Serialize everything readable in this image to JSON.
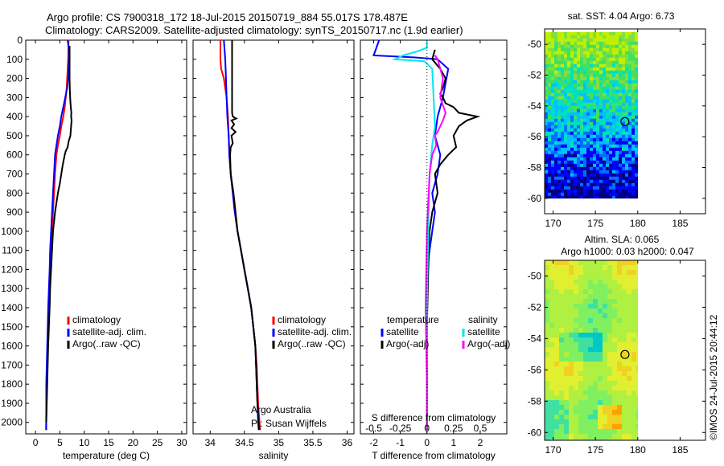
{
  "header": {
    "line1": "Argo profile: CS 7900318_172 18-Jul-2015 20150719_884 55.017S 178.487E",
    "line2": "Climatology: CARS2009. Satellite-adjusted climatology: synTS_20150717.nc (1.9d earlier)"
  },
  "stamp": "©IMOS 24-Jul-2015 20:44:12",
  "colors": {
    "climatology": "#ff0000",
    "satellite": "#0000ff",
    "argo": "#000000",
    "salinity_satellite": "#00e5ee",
    "salinity_argo": "#ff00ff"
  },
  "chart_data": [
    {
      "id": "temperature",
      "type": "line",
      "xlabel": "temperature (deg C)",
      "xlim": [
        -2,
        31
      ],
      "xticks": [
        "0",
        "5",
        "10",
        "15",
        "20",
        "25",
        "30"
      ],
      "ylim": [
        0,
        2060
      ],
      "yticks": [
        "0",
        "100",
        "200",
        "300",
        "400",
        "500",
        "600",
        "700",
        "800",
        "900",
        "1000",
        "1100",
        "1200",
        "1300",
        "1400",
        "1500",
        "1600",
        "1700",
        "1800",
        "1900",
        "2000"
      ],
      "legend": [
        "climatology",
        "satellite-adj. clim.",
        "Argo(..raw -QC)"
      ],
      "series": [
        {
          "name": "climatology",
          "color": "#ff0000",
          "x": [
            6.8,
            6.7,
            6.6,
            6.5,
            6.4,
            6.2,
            6.0,
            5.7,
            5.3,
            5.0,
            4.6,
            4.3,
            4.0,
            3.8,
            3.6,
            3.4,
            3.2,
            3.0,
            2.85,
            2.7,
            2.6,
            2.5,
            2.4,
            2.3,
            2.15
          ],
          "y": [
            0,
            100,
            150,
            200,
            250,
            300,
            350,
            400,
            450,
            500,
            550,
            600,
            700,
            800,
            900,
            1000,
            1100,
            1200,
            1300,
            1400,
            1500,
            1600,
            1700,
            1800,
            2040
          ]
        },
        {
          "name": "satellite-adj. clim.",
          "color": "#0000ff",
          "x": [
            6.6,
            6.8,
            6.9,
            6.8,
            6.7,
            6.5,
            6.1,
            5.7,
            5.3,
            5.0,
            4.6,
            4.3,
            4.0,
            3.8,
            3.6,
            3.4,
            3.2,
            3.0,
            2.9,
            2.75,
            2.6,
            2.5,
            2.4,
            2.3,
            2.2,
            2.2
          ],
          "y": [
            0,
            40,
            80,
            150,
            200,
            250,
            300,
            350,
            400,
            450,
            500,
            550,
            600,
            700,
            800,
            900,
            1000,
            1100,
            1200,
            1300,
            1400,
            1500,
            1600,
            1700,
            1800,
            2040
          ]
        },
        {
          "name": "Argo(..raw -QC)",
          "color": "#000000",
          "x": [
            7.0,
            7.0,
            7.0,
            7.05,
            7.1,
            7.2,
            7.35,
            7.3,
            7.4,
            7.3,
            7.15,
            6.8,
            6.6,
            6.2,
            6.0,
            5.6,
            5.3,
            5.0,
            4.6,
            4.3,
            4.0,
            3.8,
            3.6,
            3.4,
            3.2,
            3.0,
            2.9,
            2.75,
            2.6,
            2.5,
            2.4,
            2.3,
            2.2
          ],
          "y": [
            30,
            100,
            200,
            260,
            300,
            340,
            380,
            400,
            420,
            450,
            500,
            530,
            560,
            580,
            600,
            650,
            700,
            750,
            800,
            850,
            900,
            950,
            1000,
            1100,
            1200,
            1300,
            1400,
            1500,
            1600,
            1700,
            1800,
            1900,
            2000
          ]
        }
      ]
    },
    {
      "id": "salinity",
      "type": "line",
      "xlabel": "salinity",
      "xlim": [
        33.75,
        36.1
      ],
      "xticks": [
        "34",
        "34.5",
        "35",
        "35.5",
        "36"
      ],
      "ylim": [
        0,
        2060
      ],
      "legend": [
        "climatology",
        "satellite-adj. clim.",
        "Argo(..raw -QC)"
      ],
      "annotation": [
        "Argo Australia",
        "PI: Susan Wijffels"
      ],
      "series": [
        {
          "name": "climatology",
          "color": "#ff0000",
          "x": [
            34.15,
            34.15,
            34.16,
            34.2,
            34.24,
            34.26,
            34.27,
            34.28,
            34.3,
            34.33,
            34.36,
            34.4,
            34.45,
            34.5,
            34.55,
            34.6,
            34.63,
            34.66,
            34.68,
            34.69,
            34.7,
            34.71,
            34.72,
            34.73
          ],
          "y": [
            0,
            100,
            150,
            200,
            300,
            400,
            500,
            600,
            700,
            800,
            900,
            1000,
            1100,
            1200,
            1300,
            1400,
            1500,
            1600,
            1700,
            1800,
            1900,
            1950,
            2000,
            2040
          ]
        },
        {
          "name": "satellite-adj. clim.",
          "color": "#0000ff",
          "x": [
            34.2,
            34.22,
            34.23,
            34.24,
            34.25,
            34.27,
            34.28,
            34.3,
            34.33,
            34.36,
            34.4,
            34.45,
            34.5,
            34.55,
            34.6,
            34.63,
            34.66,
            34.67,
            34.68,
            34.69,
            34.7,
            34.71,
            34.72
          ],
          "y": [
            0,
            100,
            200,
            300,
            400,
            500,
            600,
            700,
            800,
            900,
            1000,
            1100,
            1200,
            1300,
            1400,
            1500,
            1600,
            1700,
            1800,
            1900,
            1950,
            2000,
            2040
          ]
        },
        {
          "name": "Argo(..raw -QC)",
          "color": "#000000",
          "x": [
            34.32,
            34.32,
            34.32,
            34.32,
            34.32,
            34.33,
            34.38,
            34.31,
            34.35,
            34.31,
            34.37,
            34.31,
            34.33,
            34.3,
            34.29,
            34.3,
            34.34,
            34.37,
            34.4,
            34.45,
            34.5,
            34.55,
            34.6,
            34.63,
            34.66,
            34.67,
            34.68,
            34.69,
            34.7,
            34.71
          ],
          "y": [
            0,
            100,
            200,
            300,
            380,
            400,
            410,
            420,
            440,
            460,
            480,
            500,
            540,
            560,
            600,
            700,
            800,
            900,
            1000,
            1100,
            1200,
            1300,
            1400,
            1500,
            1600,
            1700,
            1800,
            1900,
            2000,
            2040
          ]
        }
      ]
    },
    {
      "id": "differences",
      "type": "line",
      "xlabel": "T difference from climatology",
      "xlabel_top": "S difference from climatology",
      "xlim": [
        -2.5,
        3.0
      ],
      "xticks": [
        "-2",
        "-1",
        "0",
        "1",
        "2"
      ],
      "top_xticks": [
        "-0.5",
        "-0.25",
        "0",
        "0.25",
        "0.5"
      ],
      "ylim": [
        0,
        2060
      ],
      "legend_temperature_title": "temperature",
      "legend_salinity_title": "salinity",
      "legend": [
        "satellite",
        "Argo(-adj)",
        "satellite",
        "Argo(-adj)"
      ],
      "series": [
        {
          "name": "satellite",
          "color": "#0000ff",
          "x": [
            -1.8,
            -1.9,
            -2.0,
            -0.5,
            0.0,
            0.4,
            0.8,
            0.6,
            0.4,
            0.3,
            0.5,
            0.4,
            0.2,
            0.3,
            0.2,
            0.1,
            0.0,
            0.0,
            0.0,
            0.0,
            0.0,
            0.0
          ],
          "y": [
            0,
            40,
            80,
            90,
            95,
            100,
            150,
            300,
            400,
            500,
            600,
            700,
            800,
            900,
            1000,
            1100,
            1200,
            1400,
            1600,
            1800,
            2000,
            2040
          ]
        },
        {
          "name": "Argo(-adj)",
          "color": "#000000",
          "x": [
            0.3,
            0.2,
            0.5,
            0.7,
            0.6,
            0.5,
            0.6,
            0.7,
            1.0,
            1.2,
            1.9,
            1.5,
            1.2,
            1.0,
            1.1,
            0.8,
            0.5,
            0.3,
            0.4,
            0.2,
            0.1,
            0.05,
            0.0,
            0.0,
            0.0
          ],
          "y": [
            50,
            100,
            150,
            200,
            250,
            280,
            300,
            330,
            350,
            380,
            400,
            420,
            450,
            500,
            560,
            600,
            650,
            700,
            800,
            900,
            1000,
            1200,
            1500,
            1800,
            2040
          ]
        },
        {
          "name": "satellite",
          "color": "#00e5ee",
          "x": [
            0.0,
            0.0,
            -0.4,
            -0.9,
            -1.2,
            -0.1,
            0.2,
            0.25,
            0.3,
            0.2,
            0.1,
            0.05,
            0.0,
            0.0,
            0.0
          ],
          "y": [
            0,
            40,
            60,
            80,
            100,
            110,
            150,
            300,
            450,
            550,
            700,
            1000,
            1400,
            1800,
            2040
          ]
        },
        {
          "name": "Argo(-adj)",
          "color": "#ff00ff",
          "x": [
            0.3,
            0.4,
            0.5,
            0.6,
            0.5,
            0.7,
            0.6,
            0.5,
            0.4,
            0.3,
            0.35,
            0.2,
            0.1,
            0.0,
            -0.05,
            0.0,
            0.0
          ],
          "y": [
            80,
            100,
            150,
            200,
            300,
            380,
            420,
            450,
            480,
            500,
            550,
            600,
            700,
            1000,
            1400,
            1800,
            2040
          ]
        }
      ]
    },
    {
      "id": "sst_map",
      "type": "heatmap",
      "title": "sat. SST: 4.04 Argo: 6.73",
      "xlim": [
        169,
        188
      ],
      "ylim": [
        -61,
        -49
      ],
      "xticks": [
        "170",
        "175",
        "180",
        "185"
      ],
      "yticks": [
        "-50",
        "-52",
        "-54",
        "-56",
        "-58",
        "-60"
      ],
      "data_extent": {
        "lon": [
          169,
          180
        ],
        "lat": [
          -60,
          -49.2
        ]
      },
      "marker": {
        "lon": 178.487,
        "lat": -55.017
      },
      "color_ramp": [
        "#000080",
        "#0000ff",
        "#0070ff",
        "#00c0ff",
        "#00e0c0",
        "#40e060",
        "#80e040",
        "#c0f000"
      ]
    },
    {
      "id": "sla_map",
      "type": "heatmap",
      "title_line1": "Altim. SLA: 0.065",
      "title_line2": "Argo h1000: 0.03 h2000: 0.047",
      "xlim": [
        169,
        188
      ],
      "ylim": [
        -60.5,
        -49
      ],
      "xticks": [
        "170",
        "175",
        "180",
        "185"
      ],
      "yticks": [
        "-50",
        "-52",
        "-54",
        "-56",
        "-58",
        "-60"
      ],
      "data_extent": {
        "lon": [
          169,
          180
        ],
        "lat": [
          -60.5,
          -49
        ]
      },
      "marker": {
        "lon": 178.487,
        "lat": -55.017
      },
      "color_ramp": [
        "#00c8c8",
        "#40e0a0",
        "#80f060",
        "#b0f040",
        "#e0f030",
        "#f0d020",
        "#ffa000"
      ]
    }
  ]
}
